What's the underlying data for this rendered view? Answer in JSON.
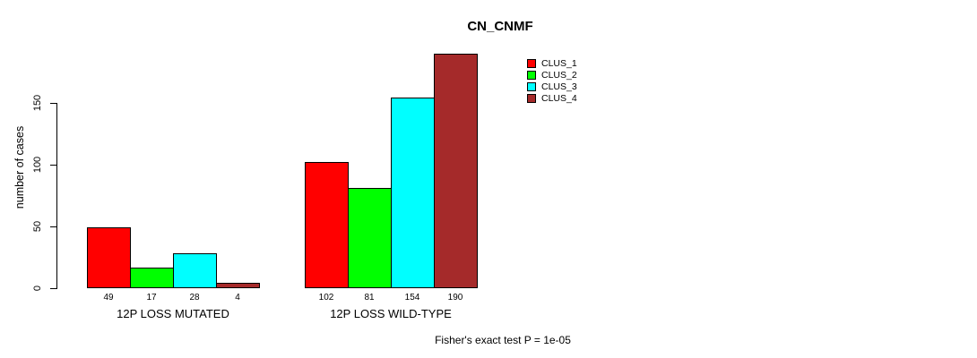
{
  "title": "CN_CNMF",
  "annotation": "Fisher's exact test P = 1e-05",
  "chart_data": {
    "type": "bar",
    "title": "CN_CNMF",
    "xlabel": "",
    "ylabel": "number of cases",
    "ylim": [
      0,
      150
    ],
    "yticks": [
      0,
      50,
      100,
      150
    ],
    "grid": false,
    "legend_position": "top-right",
    "categories": [
      "12P LOSS MUTATED",
      "12P LOSS WILD-TYPE"
    ],
    "series": [
      {
        "name": "CLUS_1",
        "color": "#FF0000",
        "values": [
          49,
          102
        ]
      },
      {
        "name": "CLUS_2",
        "color": "#00FF00",
        "values": [
          17,
          81
        ]
      },
      {
        "name": "CLUS_3",
        "color": "#00FFFF",
        "values": [
          28,
          154
        ]
      },
      {
        "name": "CLUS_4",
        "color": "#A52A2A",
        "values": [
          4,
          190
        ]
      }
    ],
    "bar_value_labels": [
      [
        49,
        17,
        28,
        4
      ],
      [
        102,
        81,
        154,
        190
      ]
    ],
    "annotation": "Fisher's exact test P = 1e-05"
  }
}
